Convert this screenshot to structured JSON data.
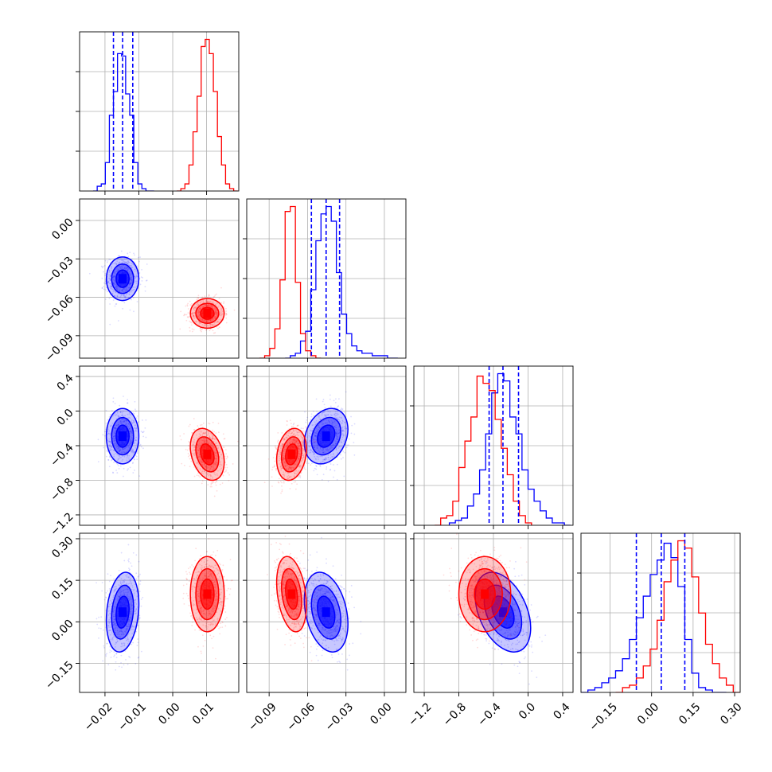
{
  "chart_data": {
    "type": "corner",
    "grid": true,
    "series": [
      {
        "color": "#0000ff",
        "means": [
          -0.0148,
          -0.0455,
          -0.29,
          0.035
        ],
        "stds": [
          0.0024,
          0.0085,
          0.16,
          0.072
        ],
        "rho": [
          [
            1,
            0,
            0,
            0.2
          ],
          [
            0,
            1,
            0.25,
            -0.3
          ],
          [
            0,
            0.25,
            1,
            -0.4
          ],
          [
            0.2,
            -0.3,
            -0.4,
            1
          ]
        ]
      },
      {
        "color": "#ff0000",
        "means": [
          0.0102,
          -0.0725,
          -0.5,
          0.1
        ],
        "stds": [
          0.0025,
          0.0058,
          0.15,
          0.068
        ],
        "rho": [
          [
            1,
            0,
            -0.3,
            0
          ],
          [
            0,
            1,
            0.2,
            -0.3
          ],
          [
            -0.3,
            0.2,
            1,
            0
          ],
          [
            0,
            -0.3,
            0,
            1
          ]
        ]
      }
    ],
    "quantile_lines": [
      [
        -0.0175,
        -0.0148,
        -0.0118
      ],
      [
        -0.057,
        -0.0455,
        -0.035
      ],
      [
        -0.45,
        -0.29,
        -0.11
      ],
      [
        -0.055,
        0.035,
        0.12
      ]
    ],
    "quantile_color": "#0000ff",
    "histograms": [
      {
        "blue": {
          "edges": [
            -0.0235,
            -0.0223,
            -0.0211,
            -0.0199,
            -0.0187,
            -0.0175,
            -0.0163,
            -0.0151,
            -0.0139,
            -0.0127,
            -0.0115,
            -0.0103,
            -0.0091,
            -0.0079,
            -0.0067,
            -0.0055
          ],
          "counts": [
            0,
            2,
            3,
            12,
            32,
            42,
            58,
            57,
            41,
            32,
            12,
            3,
            1,
            0,
            0
          ]
        },
        "red": {
          "edges": [
            0.0012,
            0.0024,
            0.0036,
            0.0048,
            0.006,
            0.0072,
            0.0084,
            0.0096,
            0.0108,
            0.012,
            0.0132,
            0.0144,
            0.0156,
            0.0168,
            0.018,
            0.0192
          ],
          "counts": [
            0,
            1,
            3,
            11,
            25,
            40,
            61,
            64,
            58,
            42,
            23,
            11,
            3,
            1,
            0,
            0
          ]
        }
      },
      {
        "blue": {
          "edges": [
            -0.0775,
            -0.0735,
            -0.0695,
            -0.0655,
            -0.0615,
            -0.0575,
            -0.0535,
            -0.0495,
            -0.0455,
            -0.0415,
            -0.0375,
            -0.0335,
            -0.0295,
            -0.0255,
            -0.0215,
            -0.0175,
            -0.0135,
            -0.0095,
            -0.0055,
            -0.0015,
            0.0025,
            0.0065,
            0.0105
          ],
          "counts": [
            0,
            1,
            2,
            7,
            11,
            28,
            48,
            59,
            62,
            56,
            35,
            18,
            10,
            5,
            3,
            2,
            2,
            1,
            1,
            1,
            0,
            0
          ]
        },
        "red": {
          "edges": [
            -0.0975,
            -0.0935,
            -0.0895,
            -0.0855,
            -0.0815,
            -0.0775,
            -0.0735,
            -0.0695,
            -0.0655,
            -0.0615,
            -0.0575,
            -0.0535,
            -0.0495
          ],
          "counts": [
            0,
            1,
            4,
            12,
            32,
            60,
            62,
            31,
            10,
            3,
            1,
            0
          ]
        }
      },
      {
        "blue": {
          "edges": [
            -0.91,
            -0.84,
            -0.77,
            -0.7,
            -0.63,
            -0.56,
            -0.49,
            -0.42,
            -0.35,
            -0.28,
            -0.21,
            -0.14,
            -0.07,
            0.0,
            0.07,
            0.14,
            0.21,
            0.28,
            0.35,
            0.42,
            0.49
          ],
          "counts": [
            1,
            2,
            3,
            8,
            13,
            23,
            38,
            55,
            63,
            60,
            45,
            38,
            23,
            15,
            10,
            6,
            3,
            1,
            1,
            0
          ]
        },
        "red": {
          "edges": [
            -1.08,
            -1.01,
            -0.94,
            -0.87,
            -0.8,
            -0.73,
            -0.66,
            -0.59,
            -0.52,
            -0.45,
            -0.38,
            -0.31,
            -0.24,
            -0.17,
            -0.1,
            -0.03,
            0.04
          ],
          "counts": [
            0,
            3,
            4,
            10,
            24,
            35,
            45,
            62,
            59,
            56,
            44,
            32,
            21,
            10,
            4,
            1
          ]
        }
      },
      {
        "blue": {
          "edges": [
            -0.255,
            -0.23,
            -0.205,
            -0.18,
            -0.155,
            -0.13,
            -0.105,
            -0.08,
            -0.055,
            -0.03,
            -0.005,
            0.02,
            0.045,
            0.07,
            0.095,
            0.12,
            0.145,
            0.17,
            0.195,
            0.22,
            0.245,
            0.27
          ],
          "counts": [
            0,
            1,
            2,
            4,
            6,
            9,
            14,
            22,
            31,
            40,
            49,
            55,
            62,
            56,
            44,
            22,
            8,
            2,
            1,
            0,
            0
          ]
        },
        "red": {
          "edges": [
            -0.13,
            -0.105,
            -0.08,
            -0.055,
            -0.03,
            -0.005,
            0.02,
            0.045,
            0.07,
            0.095,
            0.12,
            0.145,
            0.17,
            0.195,
            0.22,
            0.245,
            0.27,
            0.295,
            0.32
          ],
          "counts": [
            0,
            2,
            3,
            6,
            11,
            18,
            30,
            46,
            55,
            63,
            60,
            48,
            33,
            20,
            12,
            6,
            3,
            0
          ]
        }
      }
    ],
    "axes": [
      {
        "range": [
          -0.0275,
          0.0195
        ],
        "ticks": [
          -0.02,
          -0.01,
          0.0,
          0.01
        ],
        "tick_labels": [
          "−0.02",
          "−0.01",
          "0.00",
          "0.01"
        ]
      },
      {
        "range": [
          -0.1075,
          0.0168
        ],
        "ticks": [
          -0.09,
          -0.06,
          -0.03,
          0.0
        ],
        "tick_labels": [
          "−0.09",
          "−0.06",
          "−0.03",
          "0.00"
        ]
      },
      {
        "range": [
          -1.32,
          0.52
        ],
        "ticks": [
          -1.2,
          -0.8,
          -0.4,
          0.0,
          0.4
        ],
        "tick_labels": [
          "−1.2",
          "−0.8",
          "−0.4",
          "0.0",
          "0.4"
        ]
      },
      {
        "range": [
          -0.255,
          0.32
        ],
        "ticks": [
          -0.15,
          0.0,
          0.15,
          0.3
        ],
        "tick_labels": [
          "−0.15",
          "0.00",
          "0.15",
          "0.30"
        ]
      }
    ]
  }
}
